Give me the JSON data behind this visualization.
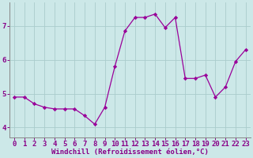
{
  "x": [
    0,
    1,
    2,
    3,
    4,
    5,
    6,
    7,
    8,
    9,
    10,
    11,
    12,
    13,
    14,
    15,
    16,
    17,
    18,
    19,
    20,
    21,
    22,
    23
  ],
  "y": [
    4.9,
    4.9,
    4.7,
    4.6,
    4.55,
    4.55,
    4.55,
    4.35,
    4.1,
    4.6,
    5.8,
    6.85,
    7.25,
    7.25,
    7.35,
    6.95,
    7.25,
    5.45,
    5.45,
    5.55,
    4.9,
    5.2,
    5.95,
    6.3
  ],
  "line_color": "#990099",
  "marker": "D",
  "markersize": 2.2,
  "linewidth": 0.9,
  "bg_color": "#cce8e8",
  "grid_color": "#aacccc",
  "xlabel": "Windchill (Refroidissement éolien,°C)",
  "xlabel_color": "#880088",
  "tick_color": "#880088",
  "xlim": [
    -0.5,
    23.5
  ],
  "ylim": [
    3.7,
    7.7
  ],
  "yticks": [
    4,
    5,
    6,
    7
  ],
  "xticks": [
    0,
    1,
    2,
    3,
    4,
    5,
    6,
    7,
    8,
    9,
    10,
    11,
    12,
    13,
    14,
    15,
    16,
    17,
    18,
    19,
    20,
    21,
    22,
    23
  ],
  "xlabel_fontsize": 6.5,
  "tick_fontsize": 6.5,
  "spine_color": "#888888"
}
